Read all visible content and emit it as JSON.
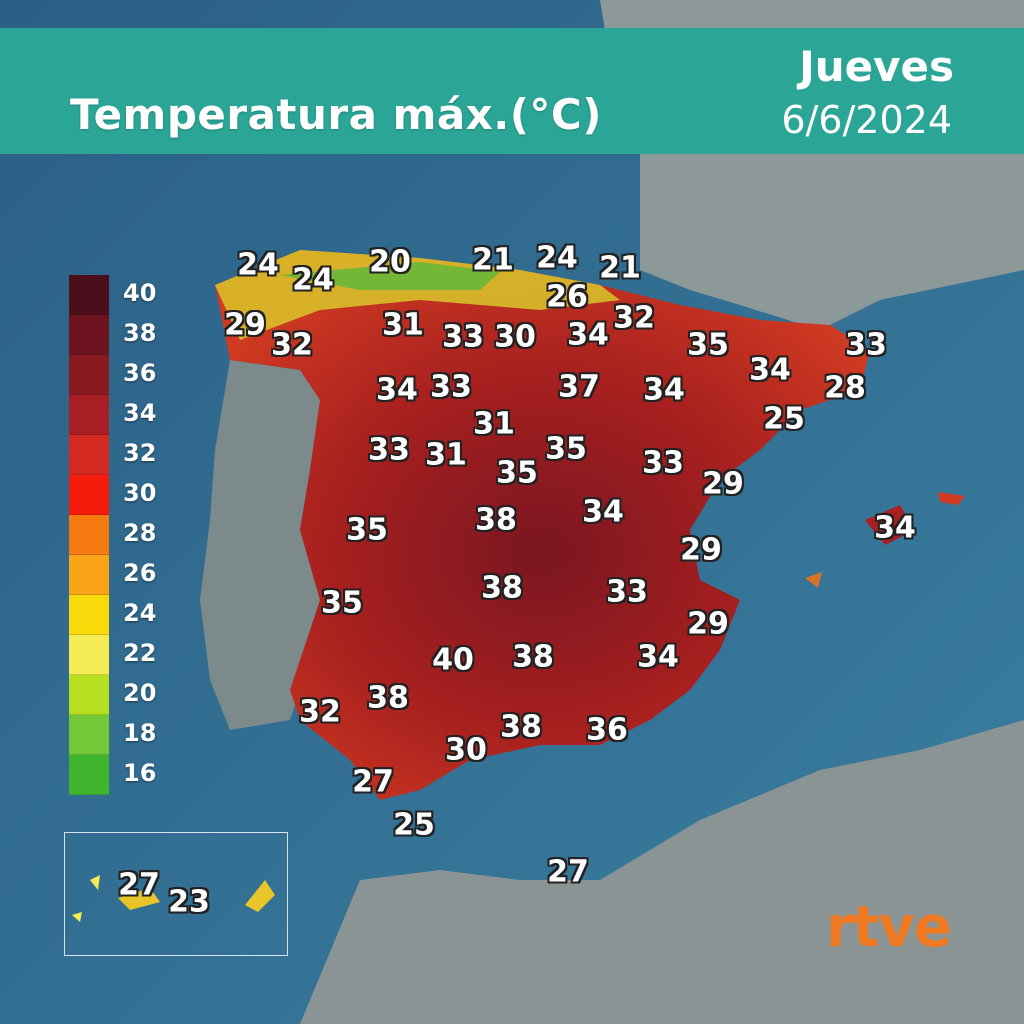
{
  "header": {
    "title": "Temperatura máx.(°C)",
    "day": "Jueves",
    "date": "6/6/2024"
  },
  "colors": {
    "header_band": "#2aa596",
    "sea": "#2f6f8e",
    "land_other": "#8b9595",
    "hot_land": "#c42f2a",
    "logo": "#f07a22"
  },
  "legend": [
    {
      "label": "40",
      "color": "#4a0f1a"
    },
    {
      "label": "38",
      "color": "#6e1420"
    },
    {
      "label": "36",
      "color": "#8a1a22"
    },
    {
      "label": "34",
      "color": "#a91f24"
    },
    {
      "label": "32",
      "color": "#d42a22"
    },
    {
      "label": "30",
      "color": "#f51c0c"
    },
    {
      "label": "28",
      "color": "#f57a12"
    },
    {
      "label": "26",
      "color": "#f9a316"
    },
    {
      "label": "24",
      "color": "#f8d90a"
    },
    {
      "label": "22",
      "color": "#f5ec55"
    },
    {
      "label": "20",
      "color": "#b5df1f"
    },
    {
      "label": "18",
      "color": "#73c83a"
    },
    {
      "label": "16",
      "color": "#3fb52f"
    }
  ],
  "temperatures": [
    {
      "value": "24"
    },
    {
      "value": "24"
    },
    {
      "value": "20"
    },
    {
      "value": "21"
    },
    {
      "value": "24"
    },
    {
      "value": "21"
    },
    {
      "value": "26"
    },
    {
      "value": "29"
    },
    {
      "value": "32"
    },
    {
      "value": "31"
    },
    {
      "value": "33"
    },
    {
      "value": "30"
    },
    {
      "value": "34"
    },
    {
      "value": "32"
    },
    {
      "value": "35"
    },
    {
      "value": "33"
    },
    {
      "value": "34"
    },
    {
      "value": "34"
    },
    {
      "value": "33"
    },
    {
      "value": "37"
    },
    {
      "value": "34"
    },
    {
      "value": "28"
    },
    {
      "value": "31"
    },
    {
      "value": "25"
    },
    {
      "value": "33"
    },
    {
      "value": "31"
    },
    {
      "value": "35"
    },
    {
      "value": "35"
    },
    {
      "value": "33"
    },
    {
      "value": "29"
    },
    {
      "value": "35"
    },
    {
      "value": "38"
    },
    {
      "value": "34"
    },
    {
      "value": "34"
    },
    {
      "value": "29"
    },
    {
      "value": "35"
    },
    {
      "value": "38"
    },
    {
      "value": "33"
    },
    {
      "value": "29"
    },
    {
      "value": "40"
    },
    {
      "value": "38"
    },
    {
      "value": "34"
    },
    {
      "value": "38"
    },
    {
      "value": "32"
    },
    {
      "value": "38"
    },
    {
      "value": "36"
    },
    {
      "value": "30"
    },
    {
      "value": "27"
    },
    {
      "value": "25"
    },
    {
      "value": "27"
    },
    {
      "value": "27"
    },
    {
      "value": "23"
    }
  ],
  "logo": "rtve"
}
